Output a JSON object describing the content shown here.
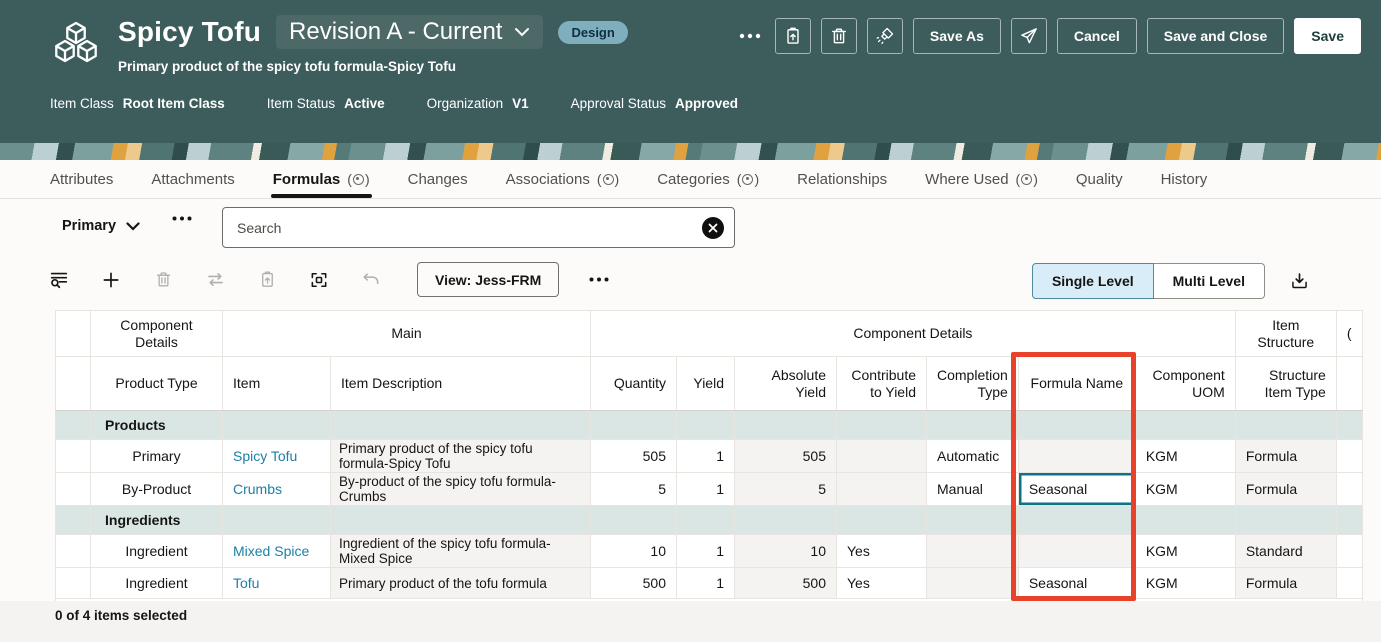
{
  "header": {
    "title": "Spicy Tofu",
    "revision": "Revision A - Current",
    "design_badge": "Design",
    "subtitle": "Primary product of the spicy tofu formula-Spicy Tofu",
    "meta": [
      {
        "label": "Item Class",
        "value": "Root Item Class"
      },
      {
        "label": "Item Status",
        "value": "Active"
      },
      {
        "label": "Organization",
        "value": "V1"
      },
      {
        "label": "Approval Status",
        "value": "Approved"
      }
    ],
    "actions": {
      "save_as": "Save As",
      "cancel": "Cancel",
      "save_and_close": "Save and Close",
      "save": "Save"
    }
  },
  "tabs": {
    "badge_open": "(",
    "badge_close": ")",
    "items": [
      {
        "label": "Attributes",
        "badge": false,
        "active": false
      },
      {
        "label": "Attachments",
        "badge": false,
        "active": false
      },
      {
        "label": "Formulas",
        "badge": true,
        "active": true
      },
      {
        "label": "Changes",
        "badge": false,
        "active": false
      },
      {
        "label": "Associations",
        "badge": true,
        "active": false
      },
      {
        "label": "Categories",
        "badge": true,
        "active": false
      },
      {
        "label": "Relationships",
        "badge": false,
        "active": false
      },
      {
        "label": "Where Used",
        "badge": true,
        "active": false
      },
      {
        "label": "Quality",
        "badge": false,
        "active": false
      },
      {
        "label": "History",
        "badge": false,
        "active": false
      }
    ]
  },
  "filter": {
    "selected": "Primary"
  },
  "search": {
    "placeholder": "Search"
  },
  "toolbar": {
    "view": "View: Jess-FRM",
    "single_level": "Single Level",
    "multi_level": "Multi Level"
  },
  "table": {
    "group_headers": [
      {
        "label": "",
        "span": 1
      },
      {
        "label": "Component Details",
        "span": 1
      },
      {
        "label": "Main",
        "span": 2
      },
      {
        "label": "Component Details",
        "span": 7
      },
      {
        "label": "Item Structure",
        "span": 1
      },
      {
        "label": "(",
        "span": 1
      }
    ],
    "columns": [
      "",
      "Product Type",
      "Item",
      "Item Description",
      "Quantity",
      "Yield",
      "Absolute Yield",
      "Contribute to Yield",
      "Completion Type",
      "Formula Name",
      "Component UOM",
      "Structure Item Type",
      ""
    ],
    "rows": [
      {
        "section": "Products"
      },
      {
        "cells": [
          "",
          "Primary",
          {
            "v": "Spicy Tofu",
            "link": 1
          },
          {
            "v": "Primary product of the spicy tofu formula-Spicy Tofu",
            "ro": 1
          },
          "505",
          "1",
          {
            "v": "505",
            "ro": 1
          },
          {
            "v": "",
            "ro": 1
          },
          "Automatic",
          {
            "v": "",
            "ro": 1
          },
          "KGM",
          {
            "v": "Formula",
            "ro": 1
          },
          ""
        ]
      },
      {
        "cells": [
          "",
          "By-Product",
          {
            "v": "Crumbs",
            "link": 1
          },
          {
            "v": "By-product of the spicy tofu formula-Crumbs",
            "ro": 1
          },
          "5",
          "1",
          {
            "v": "5",
            "ro": 1
          },
          {
            "v": "",
            "ro": 1
          },
          "Manual",
          {
            "v": "Seasonal",
            "focus": 1
          },
          "KGM",
          {
            "v": "Formula",
            "ro": 1
          },
          ""
        ]
      },
      {
        "section": "Ingredients"
      },
      {
        "cells": [
          "",
          "Ingredient",
          {
            "v": "Mixed Spice",
            "link": 1
          },
          {
            "v": "Ingredient of the spicy tofu formula-Mixed Spice",
            "ro": 1
          },
          "10",
          "1",
          {
            "v": "10",
            "ro": 1
          },
          "Yes",
          {
            "v": "",
            "ro": 1
          },
          {
            "v": "",
            "ro": 1
          },
          "KGM",
          {
            "v": "Standard",
            "ro": 1
          },
          ""
        ]
      },
      {
        "cells": [
          "",
          "Ingredient",
          {
            "v": "Tofu",
            "link": 1
          },
          {
            "v": "Primary product of the tofu formula",
            "ro": 1
          },
          "500",
          "1",
          {
            "v": "500",
            "ro": 1
          },
          "Yes",
          {
            "v": "",
            "ro": 1
          },
          "Seasonal",
          "KGM",
          {
            "v": "Formula",
            "ro": 1
          },
          ""
        ]
      }
    ]
  },
  "footer": {
    "selection": "0 of 4 items selected"
  }
}
